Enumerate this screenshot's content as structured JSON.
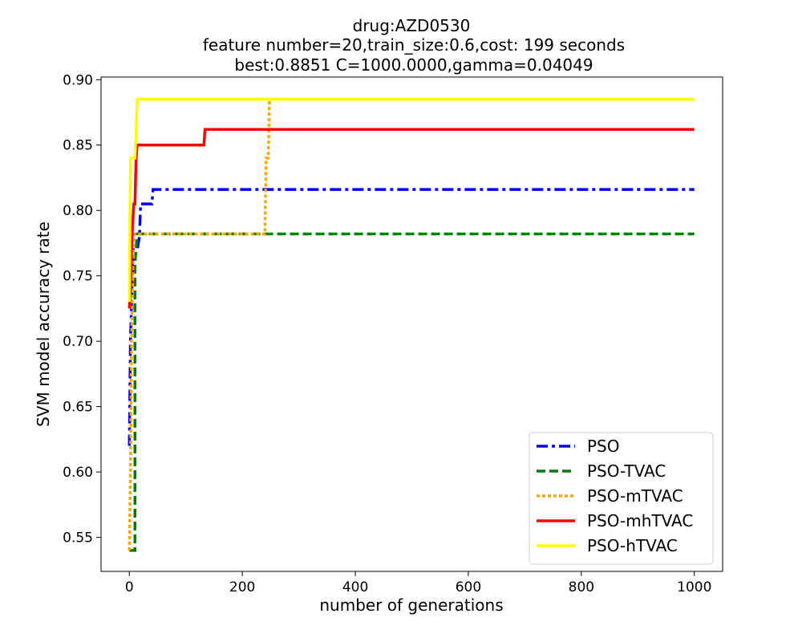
{
  "chart_data": {
    "type": "line",
    "title_lines": [
      "drug:AZD0530",
      "feature number=20,train_size:0.6,cost: 199 seconds",
      "best:0.8851  C=1000.0000,gamma=0.04049"
    ],
    "xlabel": "number of generations",
    "ylabel": "SVM model accuracy rate",
    "xlim": [
      -50,
      1050
    ],
    "ylim": [
      0.524,
      0.902
    ],
    "xticks": [
      0,
      200,
      400,
      600,
      800,
      1000
    ],
    "xtick_labels": [
      "0",
      "200",
      "400",
      "600",
      "800",
      "1000"
    ],
    "yticks": [
      0.55,
      0.6,
      0.65,
      0.7,
      0.75,
      0.8,
      0.85,
      0.9
    ],
    "ytick_labels": [
      "0.55",
      "0.60",
      "0.65",
      "0.70",
      "0.75",
      "0.80",
      "0.85",
      "0.90"
    ],
    "grid": false,
    "legend_position": "lower-right",
    "series": [
      {
        "name": "PSO",
        "color": "#0000ff",
        "style": "dashdot",
        "points": [
          [
            0,
            0.62
          ],
          [
            2,
            0.7
          ],
          [
            4,
            0.73
          ],
          [
            6,
            0.77
          ],
          [
            10,
            0.77
          ],
          [
            14,
            0.77
          ],
          [
            18,
            0.78
          ],
          [
            20,
            0.805
          ],
          [
            40,
            0.805
          ],
          [
            42,
            0.816
          ],
          [
            1000,
            0.816
          ]
        ]
      },
      {
        "name": "PSO-TVAC",
        "color": "#008000",
        "style": "dashed",
        "points": [
          [
            0,
            0.54
          ],
          [
            10,
            0.54
          ],
          [
            10,
            0.76
          ],
          [
            12,
            0.77
          ],
          [
            14,
            0.782
          ],
          [
            1000,
            0.782
          ]
        ]
      },
      {
        "name": "PSO-mTVAC",
        "color": "#ffa500",
        "style": "dotted",
        "points": [
          [
            0,
            0.54
          ],
          [
            2,
            0.6
          ],
          [
            4,
            0.7
          ],
          [
            6,
            0.75
          ],
          [
            8,
            0.78
          ],
          [
            10,
            0.782
          ],
          [
            240,
            0.782
          ],
          [
            242,
            0.84
          ],
          [
            246,
            0.84
          ],
          [
            248,
            0.885
          ],
          [
            1000,
            0.885
          ]
        ]
      },
      {
        "name": "PSO-mhTVAC",
        "color": "#ff0000",
        "style": "solid",
        "points": [
          [
            0,
            0.725
          ],
          [
            2,
            0.74
          ],
          [
            4,
            0.77
          ],
          [
            6,
            0.79
          ],
          [
            8,
            0.805
          ],
          [
            10,
            0.805
          ],
          [
            12,
            0.84
          ],
          [
            14,
            0.85
          ],
          [
            132,
            0.85
          ],
          [
            134,
            0.862
          ],
          [
            1000,
            0.862
          ]
        ]
      },
      {
        "name": "PSO-hTVAC",
        "color": "#ffff00",
        "style": "solid",
        "points": [
          [
            0,
            0.73
          ],
          [
            2,
            0.84
          ],
          [
            10,
            0.84
          ],
          [
            12,
            0.86
          ],
          [
            14,
            0.885
          ],
          [
            1000,
            0.885
          ]
        ]
      }
    ]
  }
}
